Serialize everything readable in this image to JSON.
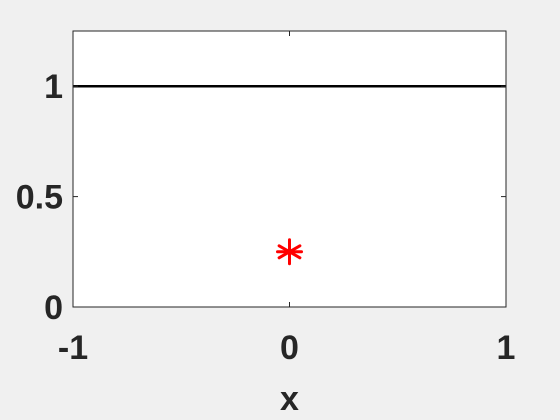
{
  "chart_data": {
    "type": "line",
    "title": "",
    "xlabel": "x",
    "ylabel": "",
    "xlim": [
      -1,
      1
    ],
    "ylim": [
      0,
      1.25
    ],
    "x_ticks": [
      -1,
      0,
      1
    ],
    "x_tick_labels": [
      "-1",
      "0",
      "1"
    ],
    "y_ticks": [
      0,
      0.5,
      1
    ],
    "y_tick_labels": [
      "0",
      "0.5",
      "1"
    ],
    "grid": false,
    "series": [
      {
        "type": "line",
        "x": [
          -1,
          1
        ],
        "y": [
          1,
          1
        ],
        "color": "#000000",
        "marker": "none"
      },
      {
        "type": "scatter",
        "x": [
          0
        ],
        "y": [
          0.25
        ],
        "color": "#ff0000",
        "marker": "asterisk"
      }
    ]
  },
  "colors": {
    "figure_background": "#f0f0f0",
    "axes_background": "#ffffff",
    "axis_color": "#262626"
  }
}
